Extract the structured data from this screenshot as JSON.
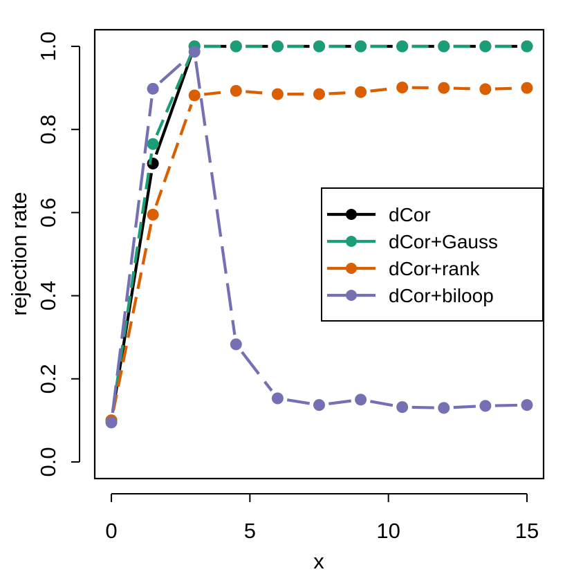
{
  "chart_data": {
    "type": "line",
    "title": "",
    "xlabel": "x",
    "ylabel": "rejection rate",
    "xlim": [
      -0.6,
      15.6
    ],
    "ylim": [
      -0.04,
      1.04
    ],
    "xticks": [
      0,
      5,
      10,
      15
    ],
    "xtick_labels": [
      "0",
      "5",
      "10",
      "15"
    ],
    "yticks": [
      0.0,
      0.2,
      0.4,
      0.6,
      0.8,
      1.0
    ],
    "ytick_labels": [
      "0.0",
      "0.2",
      "0.4",
      "0.6",
      "0.8",
      "1.0"
    ],
    "grid": false,
    "legend_position": "center-right",
    "x": [
      0,
      1.5,
      3,
      4.5,
      6,
      7.5,
      9,
      10.5,
      12,
      13.5,
      15
    ],
    "series": [
      {
        "name": "dCor",
        "color": "#000000",
        "values": [
          0.1,
          0.718,
          1.0,
          1.0,
          1.0,
          1.0,
          1.0,
          1.0,
          1.0,
          1.0,
          1.0
        ]
      },
      {
        "name": "dCor+Gauss",
        "color": "#1b9e77",
        "values": [
          0.1,
          0.765,
          1.0,
          1.0,
          1.0,
          1.0,
          1.0,
          1.0,
          1.0,
          1.0,
          1.0
        ]
      },
      {
        "name": "dCor+rank",
        "color": "#d95f02",
        "values": [
          0.1,
          0.595,
          0.882,
          0.893,
          0.885,
          0.885,
          0.89,
          0.901,
          0.9,
          0.897,
          0.9
        ]
      },
      {
        "name": "dCor+biloop",
        "color": "#7570b3",
        "values": [
          0.095,
          0.898,
          0.987,
          0.283,
          0.153,
          0.137,
          0.15,
          0.132,
          0.13,
          0.135,
          0.137
        ]
      }
    ]
  }
}
